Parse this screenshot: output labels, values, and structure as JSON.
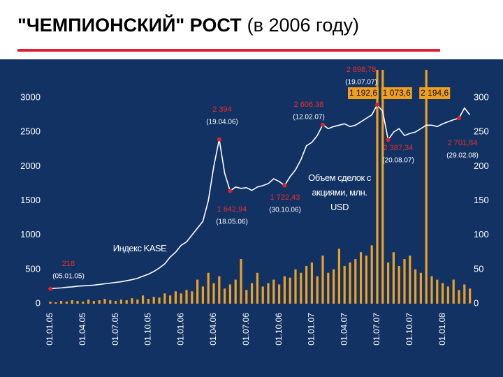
{
  "chart_data": {
    "type": "bar_line",
    "title": "\"ЧЕМПИОНСКИЙ\" РОСТ",
    "subtitle": "(в 2006 году)",
    "categories": [
      "01.01.05",
      null,
      null,
      null,
      null,
      null,
      "01.04.05",
      null,
      null,
      null,
      null,
      null,
      "01.07.05",
      null,
      null,
      null,
      null,
      null,
      "01.10.05",
      null,
      null,
      null,
      null,
      null,
      "01.01.06",
      null,
      null,
      null,
      null,
      null,
      "01.04.06",
      null,
      null,
      null,
      null,
      null,
      "01.07.06",
      null,
      null,
      null,
      null,
      null,
      "01.10.06",
      null,
      null,
      null,
      null,
      null,
      "01.01.07",
      null,
      null,
      null,
      null,
      null,
      "01.04.07",
      null,
      null,
      null,
      null,
      null,
      "01.07.07",
      null,
      null,
      null,
      null,
      null,
      "01.10.07",
      null,
      null,
      null,
      null,
      null,
      "01.01.08",
      null,
      null,
      null,
      null,
      null
    ],
    "series": [
      {
        "name": "Индекс KASE",
        "type": "line",
        "color": "#ffffff",
        "values": [
          218,
          225,
          230,
          240,
          245,
          255,
          260,
          265,
          270,
          280,
          290,
          300,
          310,
          320,
          335,
          350,
          370,
          400,
          430,
          470,
          520,
          580,
          680,
          750,
          850,
          900,
          1000,
          1100,
          1200,
          1500,
          2000,
          2394,
          1900,
          1642,
          1700,
          1680,
          1690,
          1650,
          1700,
          1720,
          1750,
          1820,
          1780,
          1722,
          1850,
          1950,
          2100,
          2300,
          2350,
          2450,
          2606,
          2550,
          2580,
          2600,
          2620,
          2580,
          2600,
          2650,
          2700,
          2750,
          2898,
          2800,
          2387,
          2500,
          2550,
          2450,
          2480,
          2500,
          2550,
          2600,
          2600,
          2580,
          2620,
          2650,
          2680,
          2702,
          2850,
          2750
        ]
      },
      {
        "name": "Объем сделок с акциями, млн. USD",
        "type": "bar",
        "axis": "y2",
        "color": "#f0a020",
        "values": [
          3,
          2,
          4,
          3,
          5,
          4,
          3,
          6,
          4,
          5,
          7,
          5,
          4,
          6,
          5,
          8,
          6,
          12,
          7,
          10,
          9,
          15,
          12,
          18,
          15,
          20,
          18,
          35,
          25,
          45,
          30,
          40,
          22,
          28,
          35,
          65,
          20,
          30,
          45,
          25,
          30,
          35,
          28,
          40,
          38,
          50,
          45,
          55,
          60,
          40,
          70,
          45,
          50,
          80,
          55,
          60,
          65,
          75,
          70,
          85,
          1192.6,
          1073.6,
          60,
          75,
          55,
          65,
          70,
          50,
          45,
          2194.6,
          40,
          35,
          30,
          25,
          35,
          20,
          28,
          22
        ],
        "value_labels": [
          null,
          null,
          null,
          null,
          null,
          null,
          null,
          null,
          null,
          null,
          null,
          null,
          null,
          null,
          null,
          null,
          null,
          null,
          null,
          null,
          null,
          null,
          null,
          null,
          null,
          null,
          null,
          null,
          null,
          null,
          null,
          null,
          null,
          null,
          null,
          null,
          null,
          null,
          null,
          null,
          null,
          null,
          null,
          null,
          null,
          null,
          null,
          null,
          null,
          null,
          null,
          null,
          null,
          null,
          null,
          null,
          null,
          null,
          null,
          null,
          "1 192,6",
          "1 073,6",
          null,
          null,
          null,
          null,
          null,
          null,
          null,
          "2 194,6",
          null,
          null,
          null,
          null,
          null,
          null,
          null,
          null
        ]
      }
    ],
    "ylim": [
      0,
      3000
    ],
    "yticks": [
      0,
      500,
      1000,
      1500,
      2000,
      2500,
      3000
    ],
    "y2lim": [
      0,
      300
    ],
    "y2ticks": [
      0,
      50,
      100,
      150,
      200,
      250,
      300
    ],
    "annotations": [
      {
        "text": "2 898,78",
        "date": "(19.07.07)"
      },
      {
        "text": "2 394",
        "date": "(19.04.06)"
      },
      {
        "text": "2 606,38",
        "date": "(12.02.07)"
      },
      {
        "text": "1 642,94",
        "date": "(18.05.06)"
      },
      {
        "text": "1 722,43",
        "date": "(30.10.06)"
      },
      {
        "text": "2 387,34",
        "date": "(20.08.07)"
      },
      {
        "text": "2 701,84",
        "date": "(29.02.08)"
      },
      {
        "text": "218",
        "date": "(05.01.05)"
      }
    ]
  }
}
